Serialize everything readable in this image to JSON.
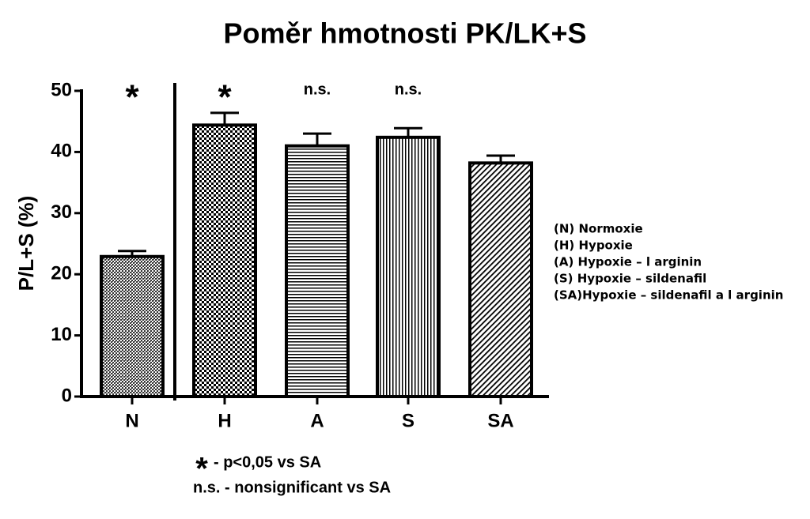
{
  "chart_data": {
    "type": "bar",
    "title": "Poměr hmotnosti PK/LK+S",
    "y_label": "P/L+S (%)",
    "categories": [
      "N",
      "H",
      "A",
      "S",
      "SA"
    ],
    "values": [
      22.9,
      44.4,
      41.0,
      42.4,
      38.2
    ],
    "errors": [
      0.9,
      2.0,
      2.0,
      1.5,
      1.2
    ],
    "annotations": [
      "*",
      "*",
      "n.s.",
      "n.s.",
      null
    ],
    "ylim": [
      0,
      50
    ],
    "yticks": [
      0,
      10,
      20,
      30,
      40,
      50
    ],
    "color": "#000000",
    "legend": [
      "(N)  Normoxie",
      "(H)  Hypoxie",
      "(A)  Hypoxie – l arginin",
      "(S)  Hypoxie – sildenafil",
      "(SA)Hypoxie – sildenafil a l arginin"
    ],
    "notes": [
      {
        "symbol": "*",
        "text": "- p<0,05 vs SA"
      },
      {
        "text": "n.s. - nonsignificant vs SA"
      }
    ]
  }
}
